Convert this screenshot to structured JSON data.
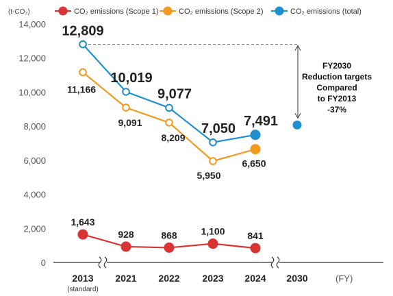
{
  "chart_data": {
    "type": "line",
    "unit_label": "(t-CO₂)",
    "x_unit_label": "(FY)",
    "categories": [
      "2013",
      "2021",
      "2022",
      "2023",
      "2024",
      "2030"
    ],
    "category_sublabels": [
      "(standard)",
      "",
      "",
      "",
      "",
      ""
    ],
    "ylim": [
      0,
      14000
    ],
    "yticks": [
      "0",
      "2,000",
      "4,000",
      "6,000",
      "8,000",
      "10,000",
      "12,000",
      "14,000"
    ],
    "axis_breaks": [
      "between 2013 and 2021",
      "between 2024 and 2030"
    ],
    "series": [
      {
        "name": "CO₂ emissions (Scope 1)",
        "color": "#d93333",
        "values": [
          1643,
          928,
          868,
          1100,
          841,
          null
        ],
        "labels": [
          "1,643",
          "928",
          "868",
          "1,100",
          "841",
          ""
        ]
      },
      {
        "name": "CO₂ emissions (Scope 2)",
        "color": "#f39a1e",
        "values": [
          11166,
          9091,
          8209,
          5950,
          6650,
          null
        ],
        "labels": [
          "11,166",
          "9,091",
          "8,209",
          "5,950",
          "6,650",
          ""
        ]
      },
      {
        "name": "CO₂ emissions (total)",
        "color": "#1f8fcf",
        "values": [
          12809,
          10019,
          9077,
          7050,
          7491,
          8070
        ],
        "labels": [
          "12,809",
          "10,019",
          "9,077",
          "7,050",
          "7,491",
          ""
        ]
      }
    ],
    "target": {
      "category": "2030",
      "value": 8070,
      "color": "#1f8fcf",
      "text": [
        "FY2030",
        "Reduction targets",
        "Compared",
        "to FY2013",
        "-37%"
      ]
    },
    "grid": false,
    "legend_position": "top"
  }
}
